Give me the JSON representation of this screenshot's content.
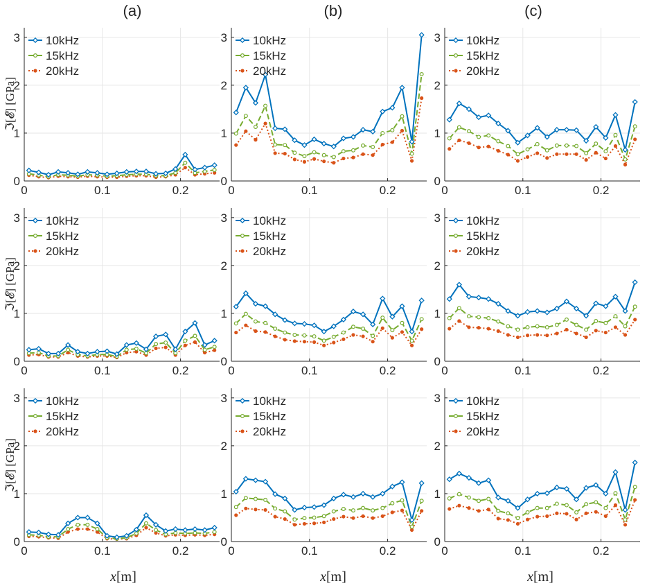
{
  "figure": {
    "column_labels": [
      "(a)",
      "(b)",
      "(c)"
    ],
    "ylabel": "ℑ[𝓔] [GPa]",
    "xlabel_var": "x",
    "xlabel_unit": "[m]",
    "xtick_labels": [
      "0",
      "0.1",
      "0.2"
    ],
    "ytick_labels": [
      "0",
      "1",
      "2",
      "3"
    ],
    "colors": {
      "10kHz": "#0072BD",
      "15kHz": "#77AC30",
      "20kHz": "#D95319",
      "grid": "#e6e6e6",
      "axis": "#262626"
    }
  },
  "chart_data": [
    {
      "type": "line",
      "panel": "row1-a",
      "legend": "top-left",
      "xlim": [
        0,
        0.25
      ],
      "ylim": [
        0,
        3.2
      ],
      "x": [
        0.006,
        0.0185,
        0.031,
        0.0435,
        0.056,
        0.0685,
        0.081,
        0.0935,
        0.106,
        0.1185,
        0.131,
        0.1435,
        0.156,
        0.1685,
        0.181,
        0.1935,
        0.206,
        0.2185,
        0.231,
        0.2435
      ],
      "series": [
        {
          "name": "10kHz",
          "values": [
            0.22,
            0.18,
            0.13,
            0.19,
            0.17,
            0.14,
            0.19,
            0.17,
            0.14,
            0.16,
            0.19,
            0.2,
            0.2,
            0.15,
            0.16,
            0.25,
            0.55,
            0.24,
            0.28,
            0.33
          ]
        },
        {
          "name": "15kHz",
          "values": [
            0.15,
            0.12,
            0.09,
            0.13,
            0.12,
            0.1,
            0.13,
            0.12,
            0.1,
            0.11,
            0.13,
            0.14,
            0.14,
            0.11,
            0.11,
            0.17,
            0.38,
            0.17,
            0.2,
            0.23
          ]
        },
        {
          "name": "20kHz",
          "values": [
            0.12,
            0.09,
            0.07,
            0.1,
            0.09,
            0.08,
            0.1,
            0.09,
            0.08,
            0.08,
            0.1,
            0.11,
            0.11,
            0.08,
            0.09,
            0.13,
            0.28,
            0.13,
            0.15,
            0.17
          ]
        }
      ]
    },
    {
      "type": "line",
      "panel": "row1-b",
      "legend": "top-left",
      "xlim": [
        0,
        0.25
      ],
      "ylim": [
        0,
        3.2
      ],
      "x": [
        0.006,
        0.0185,
        0.031,
        0.0435,
        0.056,
        0.0685,
        0.081,
        0.0935,
        0.106,
        0.1185,
        0.131,
        0.1435,
        0.156,
        0.1685,
        0.181,
        0.1935,
        0.206,
        0.2185,
        0.231,
        0.2435
      ],
      "series": [
        {
          "name": "10kHz",
          "values": [
            1.43,
            1.95,
            1.63,
            2.22,
            1.1,
            1.08,
            0.85,
            0.75,
            0.87,
            0.78,
            0.72,
            0.89,
            0.92,
            1.07,
            1.03,
            1.45,
            1.53,
            1.95,
            0.82,
            3.05
          ]
        },
        {
          "name": "15kHz",
          "values": [
            0.99,
            1.36,
            1.13,
            1.57,
            0.76,
            0.75,
            0.59,
            0.52,
            0.6,
            0.54,
            0.5,
            0.62,
            0.64,
            0.74,
            0.71,
            1.0,
            1.06,
            1.35,
            0.57,
            2.23
          ]
        },
        {
          "name": "20kHz",
          "values": [
            0.75,
            1.04,
            0.86,
            1.2,
            0.58,
            0.57,
            0.45,
            0.4,
            0.46,
            0.41,
            0.38,
            0.47,
            0.49,
            0.56,
            0.54,
            0.76,
            0.81,
            1.05,
            0.42,
            1.73
          ]
        }
      ]
    },
    {
      "type": "line",
      "panel": "row1-c",
      "legend": "top-left",
      "xlim": [
        0,
        0.25
      ],
      "ylim": [
        0,
        3.2
      ],
      "x": [
        0.006,
        0.0185,
        0.031,
        0.0435,
        0.056,
        0.0685,
        0.081,
        0.0935,
        0.106,
        0.1185,
        0.131,
        0.1435,
        0.156,
        0.1685,
        0.181,
        0.1935,
        0.206,
        0.2185,
        0.231,
        0.2435
      ],
      "series": [
        {
          "name": "10kHz",
          "values": [
            1.28,
            1.62,
            1.5,
            1.33,
            1.37,
            1.2,
            1.05,
            0.8,
            0.95,
            1.11,
            0.92,
            1.07,
            1.07,
            1.06,
            0.84,
            1.13,
            0.9,
            1.38,
            0.65,
            1.65
          ]
        },
        {
          "name": "15kHz",
          "values": [
            0.89,
            1.12,
            1.04,
            0.92,
            0.95,
            0.83,
            0.73,
            0.56,
            0.66,
            0.77,
            0.64,
            0.74,
            0.74,
            0.73,
            0.58,
            0.78,
            0.62,
            0.96,
            0.45,
            1.14
          ]
        },
        {
          "name": "20kHz",
          "values": [
            0.67,
            0.85,
            0.79,
            0.7,
            0.72,
            0.63,
            0.55,
            0.42,
            0.5,
            0.58,
            0.48,
            0.56,
            0.56,
            0.56,
            0.44,
            0.59,
            0.47,
            0.73,
            0.34,
            0.87
          ]
        }
      ]
    },
    {
      "type": "line",
      "panel": "row2-a",
      "legend": "top-left",
      "xlim": [
        0,
        0.25
      ],
      "ylim": [
        0,
        3.2
      ],
      "x": [
        0.006,
        0.0185,
        0.031,
        0.0435,
        0.056,
        0.0685,
        0.081,
        0.0935,
        0.106,
        0.1185,
        0.131,
        0.1435,
        0.156,
        0.1685,
        0.181,
        0.1935,
        0.206,
        0.2185,
        0.231,
        0.2435
      ],
      "series": [
        {
          "name": "10kHz",
          "values": [
            0.24,
            0.26,
            0.16,
            0.16,
            0.34,
            0.2,
            0.16,
            0.2,
            0.21,
            0.15,
            0.34,
            0.38,
            0.25,
            0.52,
            0.56,
            0.25,
            0.62,
            0.8,
            0.34,
            0.43
          ]
        },
        {
          "name": "15kHz",
          "values": [
            0.17,
            0.18,
            0.11,
            0.11,
            0.24,
            0.14,
            0.11,
            0.14,
            0.14,
            0.1,
            0.24,
            0.26,
            0.17,
            0.36,
            0.39,
            0.17,
            0.43,
            0.53,
            0.24,
            0.3
          ]
        },
        {
          "name": "20kHz",
          "values": [
            0.13,
            0.14,
            0.09,
            0.09,
            0.18,
            0.11,
            0.09,
            0.11,
            0.11,
            0.08,
            0.18,
            0.2,
            0.13,
            0.27,
            0.29,
            0.13,
            0.33,
            0.4,
            0.18,
            0.23
          ]
        }
      ]
    },
    {
      "type": "line",
      "panel": "row2-b",
      "legend": "top-left",
      "xlim": [
        0,
        0.25
      ],
      "ylim": [
        0,
        3.2
      ],
      "x": [
        0.006,
        0.0185,
        0.031,
        0.0435,
        0.056,
        0.0685,
        0.081,
        0.0935,
        0.106,
        0.1185,
        0.131,
        0.1435,
        0.156,
        0.1685,
        0.181,
        0.1935,
        0.206,
        0.2185,
        0.231,
        0.2435
      ],
      "series": [
        {
          "name": "10kHz",
          "values": [
            1.14,
            1.42,
            1.2,
            1.15,
            0.98,
            0.86,
            0.79,
            0.78,
            0.75,
            0.62,
            0.73,
            0.87,
            1.04,
            0.98,
            0.77,
            1.31,
            0.93,
            1.15,
            0.62,
            1.27
          ]
        },
        {
          "name": "15kHz",
          "values": [
            0.79,
            0.99,
            0.83,
            0.8,
            0.68,
            0.6,
            0.55,
            0.54,
            0.52,
            0.43,
            0.51,
            0.6,
            0.72,
            0.68,
            0.53,
            0.91,
            0.65,
            0.8,
            0.43,
            0.88
          ]
        },
        {
          "name": "20kHz",
          "values": [
            0.6,
            0.75,
            0.63,
            0.61,
            0.52,
            0.45,
            0.42,
            0.41,
            0.4,
            0.33,
            0.39,
            0.46,
            0.55,
            0.52,
            0.41,
            0.69,
            0.49,
            0.61,
            0.33,
            0.67
          ]
        }
      ]
    },
    {
      "type": "line",
      "panel": "row2-c",
      "legend": "top-left",
      "xlim": [
        0,
        0.25
      ],
      "ylim": [
        0,
        3.2
      ],
      "x": [
        0.006,
        0.0185,
        0.031,
        0.0435,
        0.056,
        0.0685,
        0.081,
        0.0935,
        0.106,
        0.1185,
        0.131,
        0.1435,
        0.156,
        0.1685,
        0.181,
        0.1935,
        0.206,
        0.2185,
        0.231,
        0.2435
      ],
      "series": [
        {
          "name": "10kHz",
          "values": [
            1.3,
            1.6,
            1.35,
            1.33,
            1.3,
            1.2,
            1.05,
            0.95,
            1.03,
            1.05,
            1.02,
            1.1,
            1.25,
            1.1,
            0.95,
            1.21,
            1.15,
            1.35,
            1.05,
            1.65
          ]
        },
        {
          "name": "15kHz",
          "values": [
            0.9,
            1.11,
            0.94,
            0.92,
            0.9,
            0.83,
            0.73,
            0.66,
            0.71,
            0.73,
            0.71,
            0.76,
            0.87,
            0.76,
            0.66,
            0.84,
            0.8,
            0.94,
            0.73,
            1.14
          ]
        },
        {
          "name": "20kHz",
          "values": [
            0.68,
            0.84,
            0.71,
            0.7,
            0.68,
            0.63,
            0.55,
            0.5,
            0.54,
            0.55,
            0.54,
            0.58,
            0.66,
            0.58,
            0.5,
            0.64,
            0.6,
            0.71,
            0.55,
            0.87
          ]
        }
      ]
    },
    {
      "type": "line",
      "panel": "row3-a",
      "legend": "top-left",
      "xlim": [
        0,
        0.25
      ],
      "ylim": [
        0,
        3.2
      ],
      "x": [
        0.006,
        0.0185,
        0.031,
        0.0435,
        0.056,
        0.0685,
        0.081,
        0.0935,
        0.106,
        0.1185,
        0.131,
        0.1435,
        0.156,
        0.1685,
        0.181,
        0.1935,
        0.206,
        0.2185,
        0.231,
        0.2435
      ],
      "series": [
        {
          "name": "10kHz",
          "values": [
            0.2,
            0.19,
            0.15,
            0.14,
            0.38,
            0.5,
            0.5,
            0.38,
            0.12,
            0.09,
            0.12,
            0.25,
            0.55,
            0.35,
            0.22,
            0.26,
            0.24,
            0.26,
            0.24,
            0.29
          ]
        },
        {
          "name": "15kHz",
          "values": [
            0.14,
            0.13,
            0.1,
            0.1,
            0.26,
            0.35,
            0.35,
            0.26,
            0.08,
            0.06,
            0.08,
            0.17,
            0.38,
            0.24,
            0.15,
            0.18,
            0.17,
            0.18,
            0.17,
            0.2
          ]
        },
        {
          "name": "20kHz",
          "values": [
            0.11,
            0.1,
            0.08,
            0.07,
            0.2,
            0.26,
            0.26,
            0.2,
            0.06,
            0.05,
            0.06,
            0.13,
            0.29,
            0.18,
            0.12,
            0.14,
            0.13,
            0.14,
            0.13,
            0.15
          ]
        }
      ]
    },
    {
      "type": "line",
      "panel": "row3-b",
      "legend": "top-left",
      "xlim": [
        0,
        0.25
      ],
      "ylim": [
        0,
        3.2
      ],
      "x": [
        0.006,
        0.0185,
        0.031,
        0.0435,
        0.056,
        0.0685,
        0.081,
        0.0935,
        0.106,
        0.1185,
        0.131,
        0.1435,
        0.156,
        0.1685,
        0.181,
        0.1935,
        0.206,
        0.2185,
        0.231,
        0.2435
      ],
      "series": [
        {
          "name": "10kHz",
          "values": [
            1.04,
            1.31,
            1.28,
            1.25,
            0.99,
            0.9,
            0.66,
            0.71,
            0.72,
            0.76,
            0.9,
            0.98,
            0.93,
            1.0,
            0.93,
            1.0,
            1.15,
            1.24,
            0.45,
            1.22
          ]
        },
        {
          "name": "15kHz",
          "values": [
            0.72,
            0.91,
            0.89,
            0.87,
            0.69,
            0.63,
            0.46,
            0.49,
            0.5,
            0.53,
            0.63,
            0.68,
            0.65,
            0.7,
            0.65,
            0.7,
            0.8,
            0.86,
            0.31,
            0.85
          ]
        },
        {
          "name": "20kHz",
          "values": [
            0.55,
            0.69,
            0.67,
            0.66,
            0.52,
            0.47,
            0.35,
            0.37,
            0.38,
            0.4,
            0.47,
            0.52,
            0.49,
            0.53,
            0.49,
            0.53,
            0.61,
            0.65,
            0.24,
            0.64
          ]
        }
      ]
    },
    {
      "type": "line",
      "panel": "row3-c",
      "legend": "top-left",
      "xlim": [
        0,
        0.25
      ],
      "ylim": [
        0,
        3.2
      ],
      "x": [
        0.006,
        0.0185,
        0.031,
        0.0435,
        0.056,
        0.0685,
        0.081,
        0.0935,
        0.106,
        0.1185,
        0.131,
        0.1435,
        0.156,
        0.1685,
        0.181,
        0.1935,
        0.206,
        0.2185,
        0.231,
        0.2435
      ],
      "series": [
        {
          "name": "10kHz",
          "values": [
            1.3,
            1.42,
            1.33,
            1.22,
            1.28,
            0.92,
            0.85,
            0.7,
            0.88,
            1.0,
            1.01,
            1.13,
            1.1,
            0.88,
            1.12,
            1.18,
            1.0,
            1.45,
            0.66,
            1.65
          ]
        },
        {
          "name": "15kHz",
          "values": [
            0.9,
            0.99,
            0.92,
            0.85,
            0.89,
            0.64,
            0.59,
            0.49,
            0.61,
            0.7,
            0.7,
            0.79,
            0.76,
            0.61,
            0.78,
            0.82,
            0.7,
            1.01,
            0.46,
            1.14
          ]
        },
        {
          "name": "20kHz",
          "values": [
            0.68,
            0.75,
            0.7,
            0.64,
            0.67,
            0.48,
            0.45,
            0.37,
            0.46,
            0.52,
            0.53,
            0.59,
            0.58,
            0.46,
            0.59,
            0.62,
            0.53,
            0.76,
            0.35,
            0.87
          ]
        }
      ]
    }
  ]
}
